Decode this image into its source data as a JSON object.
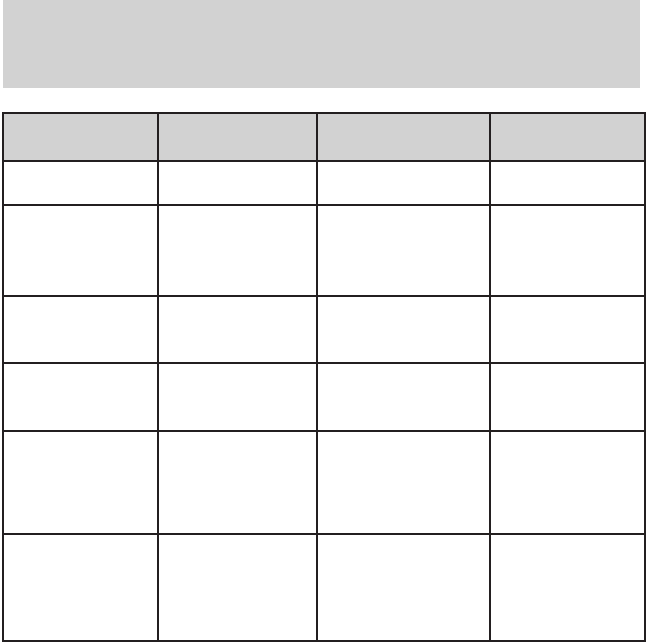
{
  "colors": {
    "page_background": "#ffffff",
    "band_fill": "#d2d2d2",
    "table_header_fill": "#d2d2d2",
    "table_border": "#231f20",
    "cell_fill": "#ffffff"
  },
  "header_band": {
    "text": ""
  },
  "table": {
    "columns": [
      {
        "header": ""
      },
      {
        "header": ""
      },
      {
        "header": ""
      },
      {
        "header": ""
      }
    ],
    "rows": [
      {
        "cells": [
          "",
          "",
          "",
          ""
        ]
      },
      {
        "cells": [
          "",
          "",
          "",
          ""
        ]
      },
      {
        "cells": [
          "",
          "",
          "",
          ""
        ]
      },
      {
        "cells": [
          "",
          "",
          "",
          ""
        ]
      },
      {
        "cells": [
          "",
          "",
          "",
          ""
        ]
      },
      {
        "cells": [
          "",
          "",
          "",
          ""
        ]
      }
    ]
  }
}
